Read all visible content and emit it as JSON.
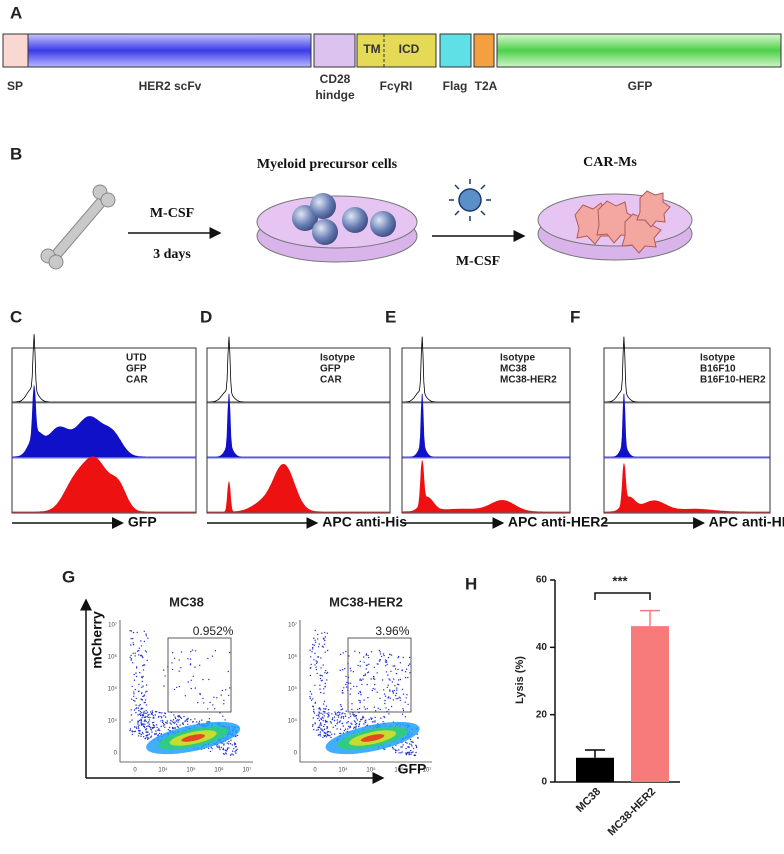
{
  "panel_labels": [
    "A",
    "B",
    "C",
    "D",
    "E",
    "F",
    "G",
    "H"
  ],
  "construct": {
    "sp": "SP",
    "scfv": "HER2 scFv",
    "cd28": [
      "CD28",
      "hindge"
    ],
    "tm": "TM",
    "icd": "ICD",
    "fcgr": "FcγRI",
    "flag": "Flag",
    "t2a": "T2A",
    "gfp": "GFP"
  },
  "workflow": {
    "step1": "M-CSF",
    "step1_time": "3 days",
    "precursors": "Myeloid  precursor  cells",
    "step2": "M-CSF",
    "product": "CAR-Ms"
  },
  "histograms": [
    {
      "legend": [
        "UTD",
        "GFP",
        "CAR"
      ],
      "xlabel": "GFP"
    },
    {
      "legend": [
        "Isotype",
        "GFP",
        "CAR"
      ],
      "xlabel": "APC anti-His"
    },
    {
      "legend": [
        "Isotype",
        "MC38",
        "MC38-HER2"
      ],
      "xlabel": "APC anti-HER2"
    },
    {
      "legend": [
        "Isotype",
        "B16F10",
        "B16F10-HER2"
      ],
      "xlabel": "APC anti-HER2"
    }
  ],
  "histogram_colors": [
    "#000000",
    "#1010c8",
    "#ee1111"
  ],
  "flow": {
    "ylabel": "mCherry",
    "xlabel": "GFP",
    "plots": [
      {
        "title": "MC38",
        "gate": "0.952%"
      },
      {
        "title": "MC38-HER2",
        "gate": "3.96%"
      }
    ],
    "xticks": [
      "0",
      "10⁴",
      "10⁵",
      "10⁶",
      "10⁷"
    ],
    "yticks": [
      "10⁷",
      "10⁶",
      "10⁵",
      "10⁴",
      "0"
    ]
  },
  "chart_data": {
    "type": "bar",
    "ylabel": "Lysis (%)",
    "categories": [
      "MC38",
      "MC38-HER2"
    ],
    "values": [
      7.2,
      46.3
    ],
    "errors": [
      2.3,
      4.6
    ],
    "colors": [
      "#000000",
      "#f77b7b"
    ],
    "ylim": [
      0,
      60
    ],
    "yticks": [
      0,
      20,
      40,
      60
    ],
    "annotation": "***"
  }
}
